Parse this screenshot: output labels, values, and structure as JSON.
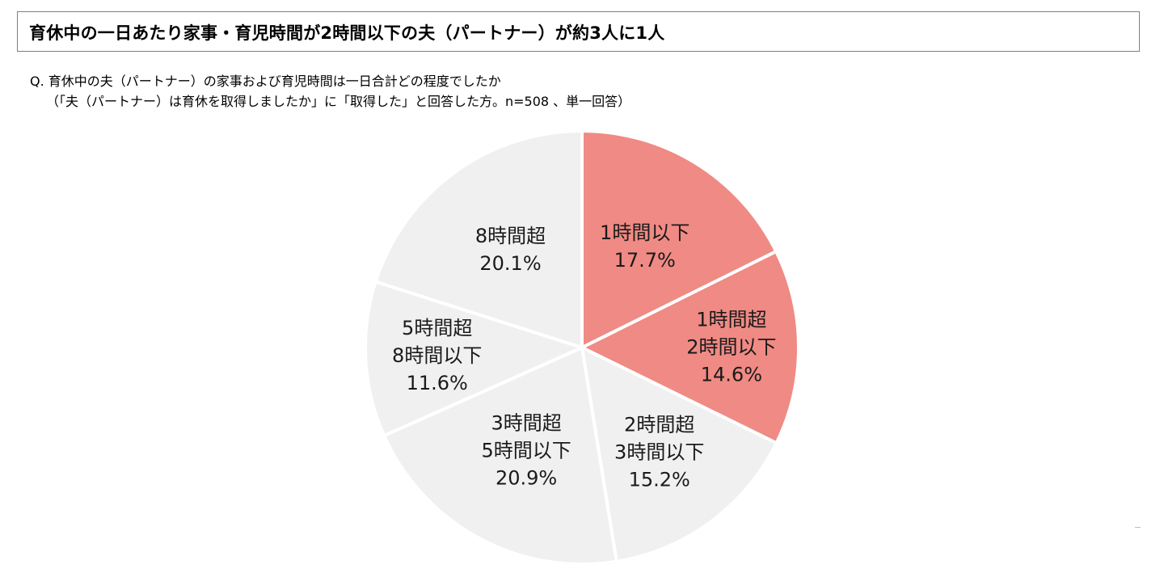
{
  "headline": "育休中の一日あたり家事・育児時間が2時間以下の夫（パートナー）が約3人に1人",
  "question": {
    "line1": "Q.  育休中の夫（パートナー）の家事および育児時間は一日合計どの程度でしたか",
    "line2": "（「夫（パートナー）は育休を取得しましたか」に「取得した」と回答した方。n=508 、単一回答）"
  },
  "colors": {
    "highlight": "#f08a84",
    "base": "#f0f0f0",
    "separator": "#ffffff"
  },
  "chart_data": {
    "type": "pie",
    "direction": "clockwise-from-top",
    "labels": [
      "1時間以下",
      "1時間超2時間以下",
      "2時間超3時間以下",
      "3時間超5時間以下",
      "5時間超8時間以下",
      "8時間超"
    ],
    "values": [
      17.7,
      14.6,
      15.2,
      20.9,
      11.6,
      20.1
    ],
    "slices": [
      {
        "lines": [
          "1時間以下",
          "17.7%"
        ],
        "value": 17.7,
        "highlight": true
      },
      {
        "lines": [
          "1時間超",
          "2時間以下",
          "14.6%"
        ],
        "value": 14.6,
        "highlight": true
      },
      {
        "lines": [
          "2時間超",
          "3時間以下",
          "15.2%"
        ],
        "value": 15.2,
        "highlight": false
      },
      {
        "lines": [
          "3時間超",
          "5時間以下",
          "20.9%"
        ],
        "value": 20.9,
        "highlight": false
      },
      {
        "lines": [
          "5時間超",
          "8時間以下",
          "11.6%"
        ],
        "value": 11.6,
        "highlight": false
      },
      {
        "lines": [
          "8時間超",
          "20.1%"
        ],
        "value": 20.1,
        "highlight": false
      }
    ]
  }
}
